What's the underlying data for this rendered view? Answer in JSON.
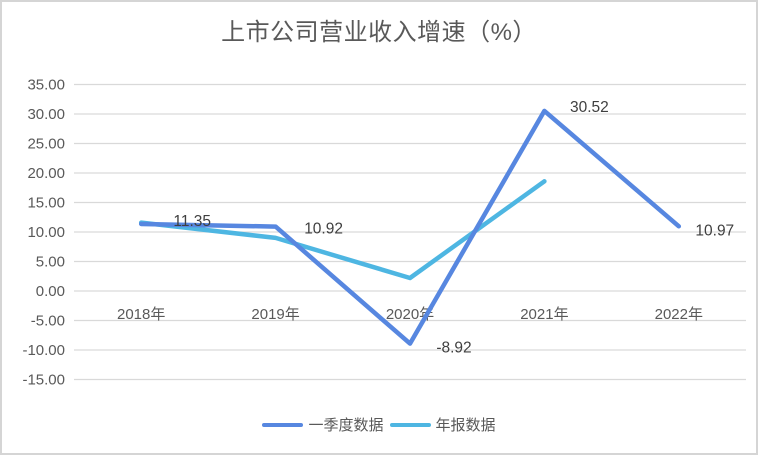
{
  "title": "上市公司营业收入增速（%）",
  "colors": {
    "series_q1": "#5787E0",
    "series_annual": "#4EB6E2",
    "gridline": "#D9D9D9",
    "axis_text": "#595959",
    "data_label_text": "#3F3F3F",
    "title_text": "#595959",
    "frame_border": "#D5D5D5",
    "background": "#FFFFFF"
  },
  "chart_data": {
    "type": "line",
    "title": "上市公司营业收入增速（%）",
    "categories": [
      "2018年",
      "2019年",
      "2020年",
      "2021年",
      "2022年"
    ],
    "series": [
      {
        "name": "一季度数据",
        "color": "#5787E0",
        "values": [
          11.35,
          10.92,
          -8.92,
          30.52,
          10.97
        ],
        "data_labels": [
          "11.35",
          "10.92",
          "-8.92",
          "30.52",
          "10.97"
        ]
      },
      {
        "name": "年报数据",
        "color": "#4EB6E2",
        "values": [
          11.6,
          9.0,
          2.2,
          18.6,
          null
        ],
        "data_labels": []
      }
    ],
    "y_axis": {
      "min": -15,
      "max": 35,
      "step": 5,
      "tick_labels": [
        "35.00",
        "30.00",
        "25.00",
        "20.00",
        "15.00",
        "10.00",
        "5.00",
        "0.00",
        "-5.00",
        "-10.00",
        "-15.00"
      ]
    },
    "x_axis": {
      "tick_labels": [
        "2018年",
        "2019年",
        "2020年",
        "2021年",
        "2022年"
      ]
    },
    "grid": true,
    "legend_position": "bottom",
    "legend_entries": [
      "一季度数据",
      "年报数据"
    ]
  }
}
